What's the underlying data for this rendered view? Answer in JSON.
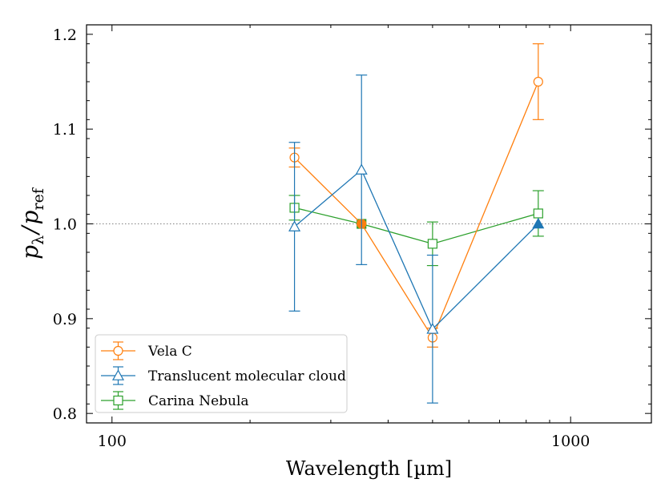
{
  "chart_data": {
    "type": "line",
    "xscale": "log",
    "xlabel": "Wavelength [µm]",
    "ylabel": {
      "main": "p",
      "sub_lambda": "λ",
      "slash": "/",
      "main2": "p",
      "sub_ref": "ref"
    },
    "xlim": [
      88,
      1500
    ],
    "ylim": [
      0.79,
      1.21
    ],
    "x_major_ticks": [
      100,
      1000
    ],
    "x_major_tick_labels": [
      "100",
      "1000"
    ],
    "x_minor_ticks": [
      200,
      300,
      400,
      500,
      600,
      700,
      800,
      900
    ],
    "y_ticks": [
      0.8,
      0.9,
      1.0,
      1.1,
      1.2
    ],
    "y_tick_labels": [
      "0.8",
      "0.9",
      "1.0",
      "1.1",
      "1.2"
    ],
    "reference_line": {
      "y": 1.0,
      "style": "dotted",
      "color": "#808080"
    },
    "legend_position": "lower-left",
    "series": [
      {
        "name": "Vela C",
        "color": "#ff7f0e",
        "marker": "circle",
        "x": [
          250,
          350,
          500,
          850
        ],
        "y": [
          1.07,
          1.0,
          0.88,
          1.15
        ],
        "yerr": [
          0.01,
          0.0,
          0.01,
          0.04
        ],
        "filled": [
          false,
          true,
          false,
          false
        ]
      },
      {
        "name": "Translucent molecular cloud",
        "color": "#1f77b4",
        "marker": "triangle",
        "x": [
          250,
          350,
          500,
          850
        ],
        "y": [
          0.997,
          1.057,
          0.889,
          1.0
        ],
        "yerr": [
          0.089,
          0.1,
          0.078,
          0.0
        ],
        "filled": [
          false,
          false,
          false,
          true
        ]
      },
      {
        "name": "Carina Nebula",
        "color": "#2ca02c",
        "marker": "square",
        "x": [
          250,
          350,
          500,
          850
        ],
        "y": [
          1.017,
          1.0,
          0.979,
          1.011
        ],
        "yerr": [
          0.013,
          0.0,
          0.023,
          0.024
        ],
        "filled": [
          false,
          true,
          false,
          false
        ]
      }
    ]
  }
}
